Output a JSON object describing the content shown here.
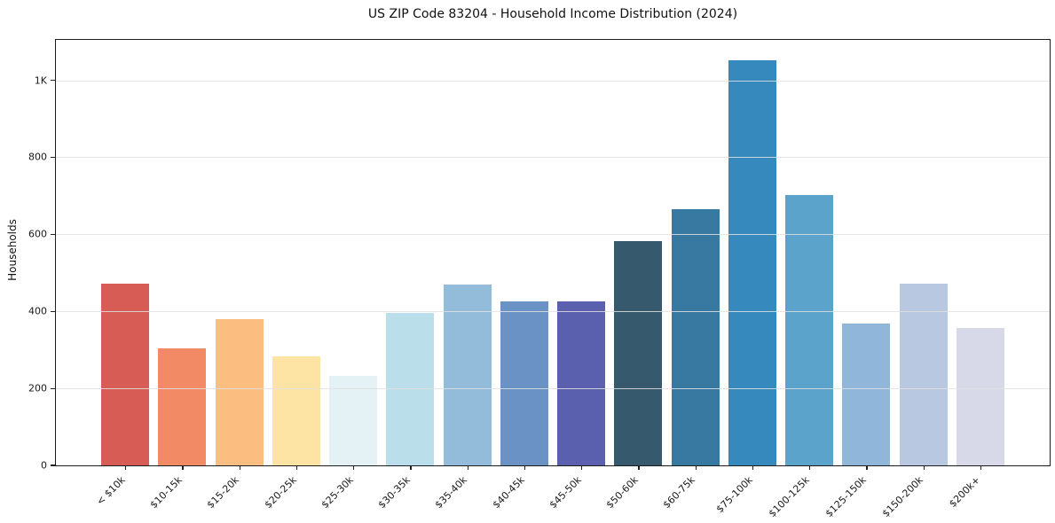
{
  "chart_data": {
    "type": "bar",
    "title": "US ZIP Code 83204 - Household Income Distribution (2024)",
    "xlabel": "",
    "ylabel": "Households",
    "categories": [
      "< $10k",
      "$10-15k",
      "$15-20k",
      "$20-25k",
      "$25-30k",
      "$30-35k",
      "$35-40k",
      "$40-45k",
      "$45-50k",
      "$50-60k",
      "$60-75k",
      "$75-100k",
      "$100-125k",
      "$125-150k",
      "$150-200k",
      "$200k+"
    ],
    "values": [
      471,
      305,
      381,
      284,
      232,
      397,
      470,
      427,
      425,
      583,
      666,
      1051,
      702,
      368,
      471,
      357
    ],
    "bar_colors": [
      "#d65c55",
      "#f28a66",
      "#fcbd81",
      "#fde4a4",
      "#e4f1f5",
      "#badeea",
      "#92bcda",
      "#6a92c5",
      "#5a60ad",
      "#36596e",
      "#3879a2",
      "#3689bd",
      "#5ba3cb",
      "#90b6da",
      "#b8c8e0",
      "#d7d9e8"
    ],
    "ylim": [
      0,
      1105
    ],
    "yticks": [
      {
        "value": 0,
        "label": "0"
      },
      {
        "value": 200,
        "label": "200"
      },
      {
        "value": 400,
        "label": "400"
      },
      {
        "value": 600,
        "label": "600"
      },
      {
        "value": 800,
        "label": "800"
      },
      {
        "value": 1000,
        "label": "1K"
      }
    ],
    "grid": "horizontal",
    "grid_above_bars": true,
    "legend": "none",
    "x_tick_rotation": 45
  },
  "colors": {
    "grid": "#e7e7e7",
    "spine": "#1c1c1c",
    "text": "#1a1a1a",
    "background": "#ffffff"
  }
}
